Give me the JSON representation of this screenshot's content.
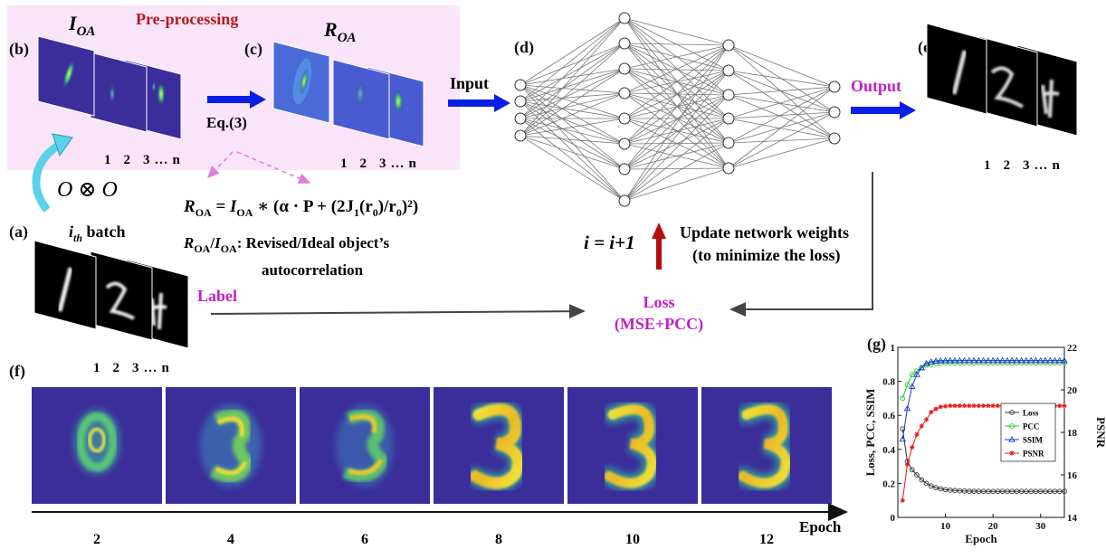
{
  "panels": {
    "a": "(a)",
    "b": "(b)",
    "c": "(c)",
    "d": "(d)",
    "e": "(e)",
    "f": "(f)",
    "g": "(g)"
  },
  "preprocess": {
    "title": "Pre-processing",
    "ioa": "I",
    "ioa_sub": "OA",
    "roa": "R",
    "roa_sub": "OA",
    "eq_ref": "Eq.(3)"
  },
  "stack_index": [
    "1",
    "2",
    "3",
    "…",
    "n"
  ],
  "conv_label": "O ⊗ O",
  "batch": {
    "i": "i",
    "sub": "th",
    "rest": " batch"
  },
  "equation": {
    "lhs": "R",
    "lhs_sub": "OA",
    "mid": " = ",
    "i": "I",
    "i_sub": "OA",
    "rest": " ∗ (α · P + (2J",
    "j_sub": "1",
    "tail": "(r",
    "r_sub": "0",
    "tail2": ")/r",
    "r_sub2": "0",
    "tail3": ")²)"
  },
  "definition": {
    "r": "R",
    "r_sub": "OA",
    "slash": "/",
    "i": "I",
    "i_sub": "OA",
    "text1": ": Revised/Ideal object’s",
    "text2": "autocorrelation"
  },
  "flow": {
    "input": "Input",
    "output": "Output",
    "label": "Label",
    "loss1": "Loss",
    "loss2": "(MSE+PCC)",
    "update1": "Update network weights",
    "update2": "(to minimize the loss)",
    "iter": "i = i+1"
  },
  "epoch_strip": {
    "title": "Epoch",
    "epochs": [
      "2",
      "4",
      "6",
      "8",
      "10",
      "12"
    ]
  },
  "colors": {
    "accent_magenta": "#c020c8",
    "title_red": "#b51a1a",
    "arrow_blue": "#0a1fe6",
    "arrow_red": "#b50d0d",
    "preprocess_bg": "#f9e4f9",
    "field_bg": "#3b2d9a",
    "loss_color": "#333333",
    "pcc_color": "#22cc22",
    "ssim_color": "#1a3ad6",
    "psnr_color": "#e81a1a"
  },
  "chart_data": {
    "type": "line",
    "xlabel": "Epoch",
    "ylabel": "Loss, PCC, SSIM",
    "ylabel_right": "PSNR",
    "xlim": [
      0,
      35
    ],
    "xticks": [
      "10",
      "20",
      "30"
    ],
    "ylim": [
      0,
      1
    ],
    "yticks": [
      "0",
      "0.2",
      "0.4",
      "0.6",
      "0.8",
      "1"
    ],
    "ylim_right": [
      14,
      22
    ],
    "yticks_right": [
      "14",
      "16",
      "18",
      "20",
      "22"
    ],
    "legend_position": "center-right",
    "x": [
      1,
      2,
      3,
      4,
      5,
      6,
      7,
      8,
      9,
      10,
      11,
      12,
      13,
      14,
      15,
      16,
      17,
      18,
      19,
      20,
      21,
      22,
      23,
      24,
      25,
      26,
      27,
      28,
      29,
      30,
      31,
      32,
      33,
      34,
      35
    ],
    "series": [
      {
        "name": "Loss",
        "axis": "left",
        "marker": "circle",
        "values": [
          0.52,
          0.33,
          0.28,
          0.25,
          0.22,
          0.2,
          0.185,
          0.175,
          0.168,
          0.163,
          0.16,
          0.158,
          0.156,
          0.155,
          0.154,
          0.154,
          0.153,
          0.153,
          0.153,
          0.153,
          0.153,
          0.153,
          0.153,
          0.153,
          0.153,
          0.153,
          0.153,
          0.153,
          0.153,
          0.153,
          0.153,
          0.153,
          0.153,
          0.153,
          0.153
        ]
      },
      {
        "name": "PCC",
        "axis": "left",
        "marker": "circle",
        "values": [
          0.7,
          0.78,
          0.84,
          0.86,
          0.88,
          0.895,
          0.9,
          0.905,
          0.907,
          0.908,
          0.908,
          0.908,
          0.909,
          0.909,
          0.909,
          0.909,
          0.909,
          0.909,
          0.909,
          0.909,
          0.909,
          0.909,
          0.909,
          0.909,
          0.909,
          0.909,
          0.909,
          0.909,
          0.909,
          0.909,
          0.909,
          0.909,
          0.909,
          0.909,
          0.909
        ]
      },
      {
        "name": "SSIM",
        "axis": "left",
        "marker": "triangle",
        "values": [
          0.46,
          0.64,
          0.77,
          0.84,
          0.88,
          0.905,
          0.915,
          0.92,
          0.922,
          0.922,
          0.922,
          0.922,
          0.922,
          0.922,
          0.922,
          0.922,
          0.922,
          0.922,
          0.922,
          0.922,
          0.922,
          0.922,
          0.922,
          0.922,
          0.922,
          0.922,
          0.922,
          0.922,
          0.922,
          0.922,
          0.922,
          0.922,
          0.922,
          0.922,
          0.922
        ]
      },
      {
        "name": "PSNR",
        "axis": "right",
        "marker": "star",
        "values": [
          14.8,
          16.5,
          17.3,
          17.9,
          18.3,
          18.6,
          18.95,
          19.1,
          19.2,
          19.23,
          19.25,
          19.25,
          19.25,
          19.25,
          19.25,
          19.25,
          19.25,
          19.25,
          19.25,
          19.25,
          19.25,
          19.25,
          19.25,
          19.25,
          19.25,
          19.25,
          19.25,
          19.25,
          19.25,
          19.25,
          19.25,
          19.25,
          19.25,
          19.25,
          19.25
        ]
      }
    ]
  }
}
